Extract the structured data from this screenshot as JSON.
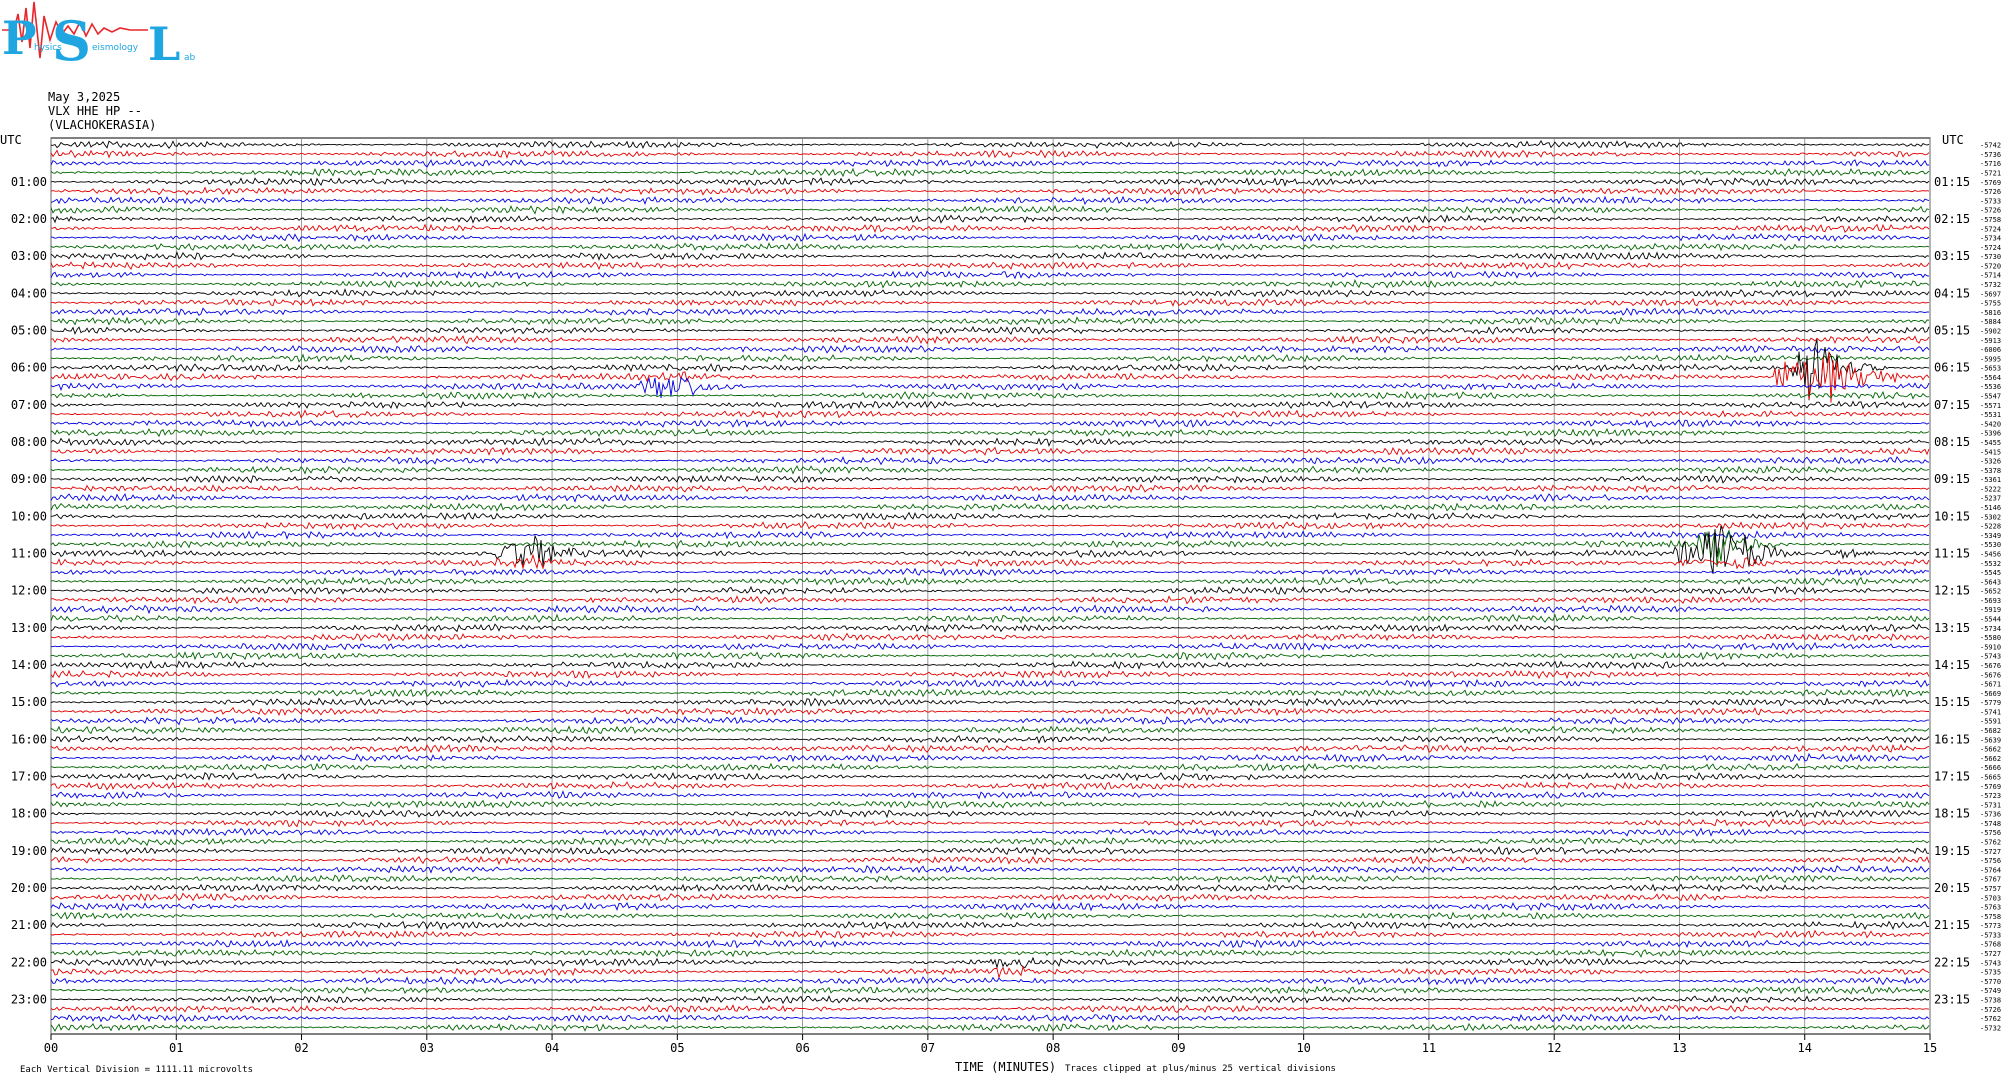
{
  "logo": {
    "letters": [
      "P",
      "S",
      "L"
    ],
    "words": [
      "hysics",
      "eismology",
      "ab"
    ],
    "colors": {
      "P": "#1fa6e0",
      "S": "#1fa6e0",
      "L": "#1fa6e0",
      "wave": "#e8272c"
    }
  },
  "header": {
    "date": "May 3,2025",
    "station": "VLX HHE HP --",
    "location": "(VLACHOKERASIA)"
  },
  "chart_data": {
    "type": "line",
    "title": "",
    "xlabel": "TIME (MINUTES)",
    "x_ticks": [
      "00",
      "01",
      "02",
      "03",
      "04",
      "05",
      "06",
      "07",
      "08",
      "09",
      "10",
      "11",
      "12",
      "13",
      "14",
      "15"
    ],
    "xlim": [
      0,
      15
    ],
    "left_axis_label": "UTC",
    "right_axis_label": "UTC",
    "left_hour_labels": [
      "01:00",
      "02:00",
      "03:00",
      "04:00",
      "05:00",
      "06:00",
      "07:00",
      "08:00",
      "09:00",
      "10:00",
      "11:00",
      "12:00",
      "13:00",
      "14:00",
      "15:00",
      "16:00",
      "17:00",
      "18:00",
      "19:00",
      "20:00",
      "21:00",
      "22:00",
      "23:00"
    ],
    "right_hour_labels": [
      "01:15",
      "02:15",
      "03:15",
      "04:15",
      "05:15",
      "06:15",
      "07:15",
      "08:15",
      "09:15",
      "10:15",
      "11:15",
      "12:15",
      "13:15",
      "14:15",
      "15:15",
      "16:15",
      "17:15",
      "18:15",
      "19:15",
      "20:15",
      "21:15",
      "22:15",
      "23:15"
    ],
    "trace_offsets": [
      "-5742",
      "-5736",
      "-5716",
      "-5721",
      "-5769",
      "-5726",
      "-5733",
      "-5726",
      "-5758",
      "-5724",
      "-5734",
      "-5724",
      "-5730",
      "-5720",
      "-5714",
      "-5732",
      "-5697",
      "-5755",
      "-5816",
      "-5884",
      "-5902",
      "-5913",
      "-6006",
      "-5995",
      "-5653",
      "-5564",
      "-5536",
      "-5547",
      "-5571",
      "-5531",
      "-5420",
      "-5396",
      "-5455",
      "-5415",
      "-5326",
      "-5378",
      "-5361",
      "-5222",
      "-5237",
      "-5146",
      "-5302",
      "-5228",
      "-5349",
      "-5530",
      "-5456",
      "-5532",
      "-5545",
      "-5643",
      "-5652",
      "-5693",
      "-5919",
      "-5544",
      "-5734",
      "-5580",
      "-5910",
      "-5743",
      "-5676",
      "-5676",
      "-5671",
      "-5669",
      "-5779",
      "-5741",
      "-5591",
      "-5682",
      "-5639",
      "-5662",
      "-5662",
      "-5666",
      "-5665",
      "-5769",
      "-5723",
      "-5731",
      "-5736",
      "-5748",
      "-5756",
      "-5762",
      "-5727",
      "-5756",
      "-5764",
      "-5767",
      "-5757",
      "-5703",
      "-5763",
      "-5758",
      "-5773",
      "-5733",
      "-5768",
      "-5727",
      "-5743",
      "-5735",
      "-5770",
      "-5749",
      "-5738",
      "-5726",
      "-5762",
      "-5732"
    ],
    "trace_colors": [
      "#000000",
      "#e00000",
      "#0000e0",
      "#006400"
    ],
    "series": [
      {
        "values": [
          [
            13.9,
            6.25,
            1.0
          ],
          [
            14.05,
            6.1,
            2.8
          ],
          [
            14.2,
            6.2,
            1.6
          ],
          [
            14.5,
            6.25,
            0.6
          ]
        ]
      },
      {
        "values": [
          [
            4.85,
            6.45,
            0.8
          ],
          [
            5.0,
            6.45,
            1.0
          ],
          [
            5.15,
            6.45,
            0.5
          ]
        ]
      },
      {
        "values": [
          [
            3.7,
            11.05,
            0.7
          ],
          [
            3.85,
            11.05,
            1.2
          ],
          [
            4.1,
            11.05,
            0.4
          ]
        ]
      },
      {
        "values": [
          [
            13.1,
            11.05,
            0.9
          ],
          [
            13.3,
            10.9,
            2.6
          ],
          [
            13.5,
            11.05,
            1.2
          ],
          [
            14.3,
            11.05,
            0.3
          ]
        ]
      },
      {
        "values": [
          [
            7.6,
            22.1,
            0.4
          ],
          [
            7.75,
            22.1,
            0.3
          ]
        ]
      }
    ],
    "footer_left": "Each Vertical Division = 1111.11 microvolts",
    "footer_note": "Traces clipped at plus/minus 25 vertical divisions",
    "grid": true
  }
}
